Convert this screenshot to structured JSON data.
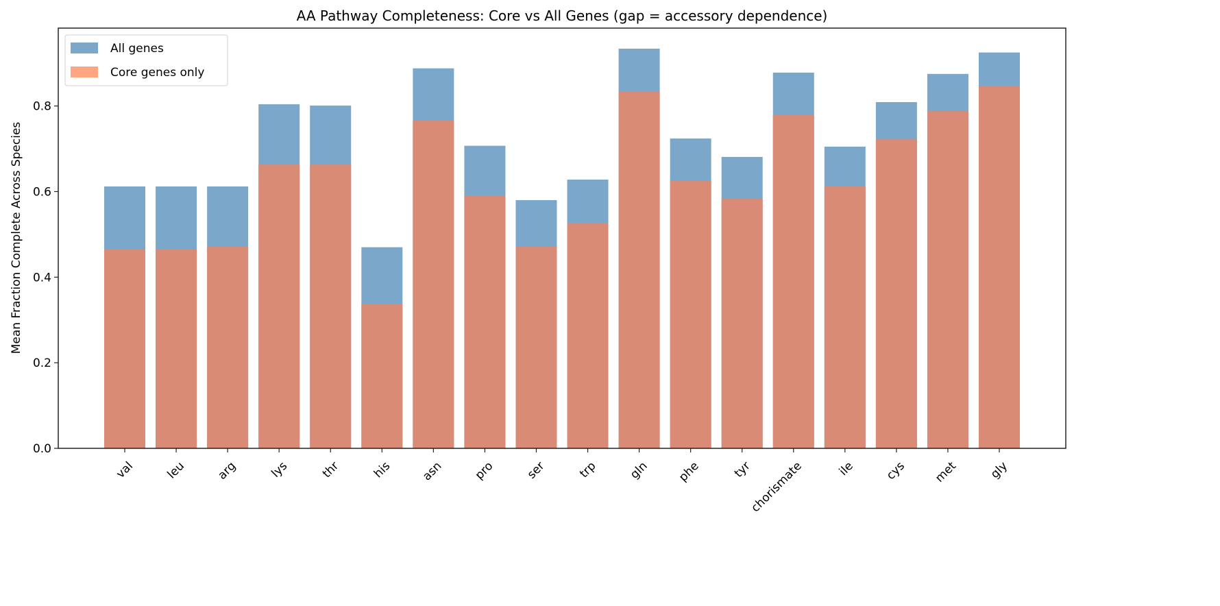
{
  "chart_data": {
    "type": "bar",
    "title": "AA Pathway Completeness: Core vs All Genes (gap = accessory dependence)",
    "xlabel": "",
    "ylabel": "Mean Fraction Complete Across Species",
    "ylim": [
      0,
      0.982
    ],
    "yticks": [
      0.0,
      0.2,
      0.4,
      0.6,
      0.8
    ],
    "ytick_labels": [
      "0.0",
      "0.2",
      "0.4",
      "0.6",
      "0.8"
    ],
    "grid": false,
    "legend_placement": "top-left",
    "categories": [
      "val",
      "leu",
      "arg",
      "lys",
      "thr",
      "his",
      "asn",
      "pro",
      "ser",
      "trp",
      "gln",
      "phe",
      "tyr",
      "chorismate",
      "ile",
      "cys",
      "met",
      "gly"
    ],
    "series": [
      {
        "name": "All genes",
        "color": "#7ba7cb",
        "legend_color": "#7ba7cb",
        "values": [
          0.612,
          0.612,
          0.612,
          0.804,
          0.801,
          0.47,
          0.888,
          0.707,
          0.58,
          0.628,
          0.934,
          0.724,
          0.681,
          0.878,
          0.705,
          0.809,
          0.875,
          0.925
        ]
      },
      {
        "name": "Core genes only",
        "color": "#d98b75",
        "legend_color": "#ffa582",
        "values": [
          0.465,
          0.465,
          0.472,
          0.663,
          0.663,
          0.338,
          0.766,
          0.591,
          0.471,
          0.527,
          0.833,
          0.625,
          0.583,
          0.78,
          0.612,
          0.723,
          0.788,
          0.846
        ]
      }
    ]
  }
}
